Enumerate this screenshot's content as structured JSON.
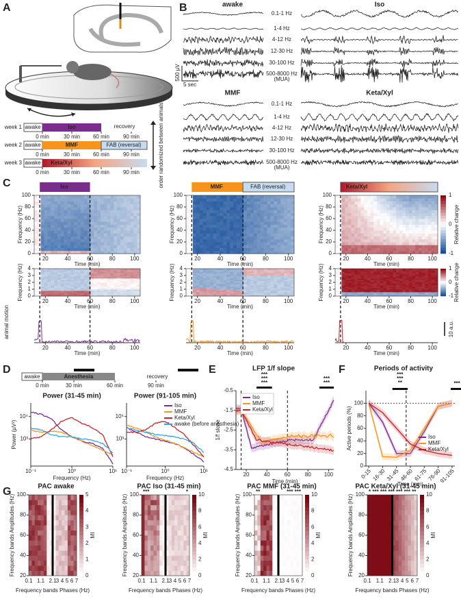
{
  "colors": {
    "Iso": "#7b2d8e",
    "MMF": "#f7941d",
    "Keta/Xyl": "#c1272d",
    "awake": "#29abe2"
  },
  "A": {
    "label": "A",
    "weeks": [
      "week 1",
      "week 2",
      "week 3"
    ],
    "awake": "awake",
    "drugs": [
      "Iso",
      "MMF",
      "Keta/Xyl"
    ],
    "reversal": "FAB (reversal)",
    "recovery": "recovery",
    "times": [
      "0 min",
      "30 min",
      "60 min",
      "90 min"
    ],
    "note": "order randomized between animals"
  },
  "B": {
    "label": "B",
    "conditions": [
      "awake",
      "Iso",
      "MMF",
      "Keta/Xyl"
    ],
    "bands": [
      "0.1-1 Hz",
      "1-4 Hz",
      "4-12 Hz",
      "12-30 Hz",
      "30-100 Hz",
      "500-8000 Hz"
    ],
    "mua": "(MUA)",
    "scale_v": "500 µV",
    "scale_t": "5 sec"
  },
  "C": {
    "label": "C",
    "drugs": [
      "Iso",
      "MMF",
      "Keta/Xyl"
    ],
    "reversal": "FAB (reversal)",
    "ylabel": "Frequency (Hz)",
    "xlabel": "Time (min)",
    "yticks_top": [
      "0",
      "20",
      "40",
      "60",
      "80",
      "100"
    ],
    "yticks_mid": [
      "0",
      "1",
      "2",
      "3",
      "4"
    ],
    "xticks": [
      "20",
      "40",
      "60",
      "80",
      "100"
    ],
    "cbar_ticks": [
      "1",
      "0",
      "-1"
    ],
    "cbar_label": "Relative change",
    "motion_label": "animal motion",
    "motion_scale": "10 a.u."
  },
  "D": {
    "label": "D",
    "awake": "awake",
    "anesthesia": "Anesthesia",
    "recovery": "recovery",
    "times": [
      "0 min",
      "30 min",
      "60 min",
      "90 min"
    ],
    "titles": [
      "Power (31-45 min)",
      "Power (91-105 min)"
    ],
    "ylabel": "Power (µV²)",
    "xlabel": "Frequency (Hz)",
    "yticks": [
      "10³",
      "10⁴"
    ],
    "xticks": [
      "10⁻¹",
      "10⁰",
      "10¹"
    ],
    "legend": [
      "Iso",
      "MMF",
      "Keta/Xyl",
      "awake (before anesthesia)"
    ]
  },
  "E": {
    "label": "E",
    "title": "LFP 1/f slope",
    "ylabel": "1/f slope",
    "xlabel": "Time (min)",
    "yticks": [
      "-0.5",
      "-1.5",
      "-2.5",
      "-3.5",
      "-4.5"
    ],
    "xticks": [
      "20",
      "40",
      "60",
      "80",
      "100"
    ],
    "legend": [
      "Iso",
      "MMF",
      "Keta/Xyl"
    ],
    "stars": [
      [
        "***",
        "***",
        "***"
      ],
      [
        "***",
        "***"
      ]
    ]
  },
  "F": {
    "label": "F",
    "title": "Periods of activity",
    "ylabel": "Active periods (%)",
    "xlabel": "Time (min)",
    "yticks": [
      "0",
      "20",
      "40",
      "60",
      "80",
      "100"
    ],
    "xticks": [
      "0-15",
      "16-30",
      "31-45",
      "46-60",
      "61-75",
      "76-90",
      "91-105"
    ],
    "legend": [
      "Iso",
      "MMF",
      "Keta/Xyl"
    ],
    "stars": [
      [
        "***",
        "***",
        "**"
      ],
      [
        "***"
      ]
    ]
  },
  "G": {
    "label": "G",
    "ylabel": "Frequency bands Amplitudes (Hz)",
    "xlabel": "Frequency bands Phases (Hz)",
    "yticks": [
      "20",
      "40",
      "60",
      "80",
      "100"
    ],
    "xticks": [
      "0.1",
      "1.1",
      "2.1",
      "3",
      "4",
      "5",
      "6",
      "7"
    ],
    "cbar_label": "MI",
    "panels": [
      {
        "title": "PAC awake",
        "cbar_ticks": [
          "0",
          "1",
          "2",
          "3",
          "4",
          "5"
        ],
        "stars": []
      },
      {
        "title": "PAC Iso (31-45 min)",
        "cbar_ticks": [
          "0",
          "2",
          "4",
          "6",
          "8",
          "10"
        ],
        "stars": [
          "***",
          "*"
        ]
      },
      {
        "title": "PAC MMF (31-45 min)",
        "cbar_ticks": [
          "0",
          "2",
          "4",
          "6",
          "8",
          "10"
        ],
        "stars": [
          "**",
          "*** ***"
        ]
      },
      {
        "title": "PAC Keta/Xyl (31-45 min)",
        "cbar_ticks": [
          "0",
          "2",
          "4",
          "6",
          "8",
          "10"
        ],
        "stars": [
          "* *** *** *** *** *** **"
        ]
      }
    ]
  }
}
